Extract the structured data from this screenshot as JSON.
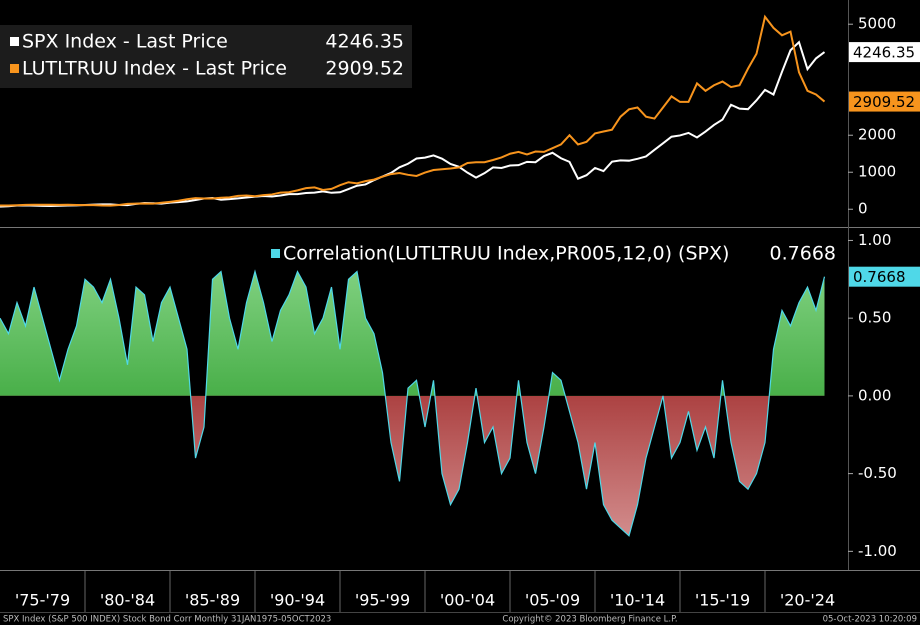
{
  "chart_data": [
    {
      "type": "line",
      "series": [
        {
          "name": "SPX Index - Last Price",
          "color": "#ffffff",
          "values": [
            70,
            80,
            100,
            104,
            98,
            92,
            89,
            95,
            100,
            103,
            114,
            125,
            130,
            131,
            115,
            110,
            145,
            168,
            163,
            153,
            180,
            192,
            211,
            250,
            291,
            304,
            257,
            273,
            294,
            317,
            340,
            358,
            343,
            371,
            408,
            408,
            438,
            450,
            481,
            444,
            459,
            544,
            636,
            670,
            786,
            885,
            980,
            1133,
            1229,
            1372,
            1394,
            1454,
            1366,
            1224,
            1148,
            989,
            855,
            974,
            1131,
            1114,
            1181,
            1191,
            1280,
            1270,
            1438,
            1526,
            1378,
            1280,
            825,
            919,
            1115,
            1030,
            1286,
            1320,
            1312,
            1362,
            1426,
            1606,
            1782,
            1960,
            1994,
            2063,
            1940,
            2098,
            2278,
            2423,
            2823,
            2718,
            2704,
            2942,
            3225,
            3100,
            3714,
            4297,
            4515,
            3785,
            4076,
            4246.35
          ]
        },
        {
          "name": "LUTLTRUU Index - Last Price",
          "color": "#f7941d",
          "values": [
            100,
            102,
            108,
            118,
            120,
            122,
            120,
            118,
            122,
            115,
            110,
            112,
            100,
            98,
            115,
            145,
            150,
            155,
            150,
            175,
            200,
            230,
            270,
            300,
            290,
            290,
            310,
            320,
            360,
            370,
            350,
            380,
            400,
            450,
            460,
            510,
            570,
            590,
            520,
            550,
            650,
            730,
            700,
            760,
            800,
            880,
            950,
            980,
            930,
            900,
            990,
            1060,
            1080,
            1100,
            1130,
            1250,
            1270,
            1270,
            1330,
            1400,
            1500,
            1550,
            1480,
            1560,
            1550,
            1650,
            1750,
            2000,
            1750,
            1820,
            2050,
            2100,
            2150,
            2500,
            2700,
            2750,
            2500,
            2450,
            2750,
            3050,
            2900,
            2900,
            3400,
            3200,
            3350,
            3450,
            3300,
            3350,
            3800,
            4200,
            5200,
            4900,
            4700,
            4800,
            3700,
            3200,
            3100,
            2909.52
          ]
        }
      ],
      "ylim": [
        -480,
        5600
      ],
      "yticks": [
        0,
        1000,
        2000,
        5000
      ]
    },
    {
      "type": "area",
      "series": [
        {
          "name": "Correlation(LUTLTRUU Index,PR005,12,0) (SPX)",
          "color": "#4fd8e8",
          "values": [
            0.5,
            0.4,
            0.6,
            0.45,
            0.7,
            0.5,
            0.3,
            0.1,
            0.3,
            0.45,
            0.75,
            0.7,
            0.6,
            0.75,
            0.5,
            0.2,
            0.7,
            0.65,
            0.35,
            0.6,
            0.7,
            0.5,
            0.3,
            -0.4,
            -0.2,
            0.75,
            0.8,
            0.5,
            0.3,
            0.6,
            0.8,
            0.6,
            0.35,
            0.55,
            0.65,
            0.8,
            0.7,
            0.4,
            0.5,
            0.7,
            0.3,
            0.75,
            0.8,
            0.5,
            0.4,
            0.15,
            -0.3,
            -0.55,
            0.05,
            0.1,
            -0.2,
            0.1,
            -0.5,
            -0.7,
            -0.6,
            -0.3,
            0.05,
            -0.3,
            -0.2,
            -0.5,
            -0.4,
            0.1,
            -0.3,
            -0.5,
            -0.2,
            0.15,
            0.1,
            -0.1,
            -0.3,
            -0.6,
            -0.3,
            -0.7,
            -0.8,
            -0.85,
            -0.9,
            -0.7,
            -0.4,
            -0.2,
            0.0,
            -0.4,
            -0.3,
            -0.1,
            -0.35,
            -0.2,
            -0.4,
            0.1,
            -0.3,
            -0.55,
            -0.6,
            -0.5,
            -0.3,
            0.3,
            0.55,
            0.45,
            0.6,
            0.7,
            0.55,
            0.7668
          ]
        }
      ],
      "ylim": [
        -1.12,
        1.08
      ],
      "yticks": [
        {
          "value": 1,
          "label": "1.00"
        },
        {
          "value": 0.5,
          "label": "0.50"
        },
        {
          "value": 0,
          "label": "0.00"
        },
        {
          "value": -0.5,
          "label": "-0.50"
        },
        {
          "value": -1,
          "label": "-1.00"
        }
      ]
    }
  ],
  "x_axis_labels": [
    "'75-'79",
    "'80-'84",
    "'85-'89",
    "'90-'94",
    "'95-'99",
    "'00-'04",
    "'05-'09",
    "'10-'14",
    "'15-'19",
    "'20-'24"
  ],
  "footer": {
    "left": "SPX Index (S&P 500 INDEX) Stock Bond Corr  Monthly 31JAN1975-05OCT2023",
    "center": "Copyright© 2023 Bloomberg Finance L.P.",
    "right": "05-Oct-2023 10:20:09"
  }
}
